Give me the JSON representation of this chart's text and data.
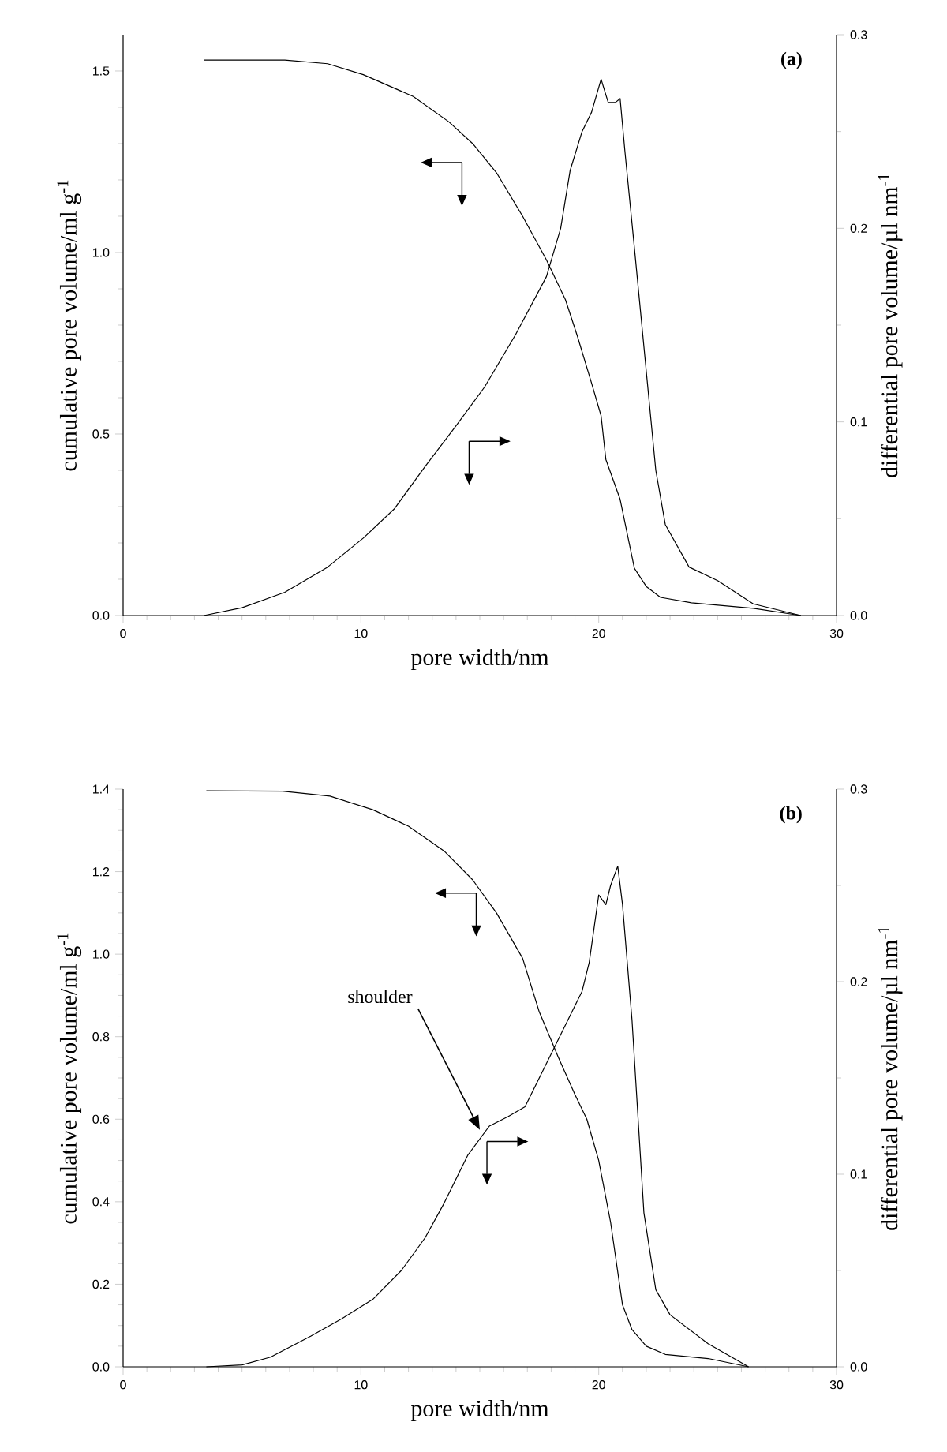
{
  "chart_data": [
    {
      "type": "line",
      "xlabel": "pore width/nm",
      "ylabel": "cumulative pore volume/ml g$^{-1}$",
      "y2label": "differential pore volume/µl nm$^{-1}$",
      "annotations": [
        "(a)"
      ],
      "xlim": [
        0,
        30
      ],
      "xticks": [
        0,
        10,
        20,
        30
      ],
      "ylim": [
        0,
        1.6
      ],
      "yticks": [
        {
          "value": 0,
          "label": "0.0"
        },
        {
          "value": 0.5,
          "label": "0.5"
        },
        {
          "value": 1,
          "label": "1.0"
        },
        {
          "value": 1.5,
          "label": "1.5"
        }
      ],
      "y2lim": [
        0,
        0.3
      ],
      "y2ticks": [
        {
          "value": 0,
          "label": "0.0"
        },
        {
          "value": 0.1,
          "label": "0.1"
        },
        {
          "value": 0.2,
          "label": "0.2"
        },
        {
          "value": 0.3,
          "label": "0.3"
        }
      ],
      "series": [
        {
          "color": "#000000",
          "x": [
            3.4,
            6.8,
            8.6,
            10.1,
            12.2,
            13.7,
            14.7,
            15.7,
            16.8,
            17.8,
            18.6,
            19.1,
            19.7,
            20.1,
            20.3,
            20.9,
            21.5,
            22.0,
            22.6,
            23.9,
            26.5,
            28.5
          ],
          "values": [
            1.53,
            1.53,
            1.52,
            1.49,
            1.43,
            1.36,
            1.3,
            1.22,
            1.1,
            0.98,
            0.87,
            0.77,
            0.64,
            0.55,
            0.43,
            0.32,
            0.13,
            0.08,
            0.05,
            0.035,
            0.02,
            0.0
          ]
        },
        {
          "color": "#000000",
          "axis": "y2",
          "x": [
            3.4,
            5.0,
            6.8,
            8.6,
            10.1,
            11.4,
            12.7,
            14.0,
            15.2,
            16.5,
            17.8,
            18.4,
            18.8,
            19.3,
            19.7,
            20.1,
            20.4,
            20.7,
            20.9,
            21.1,
            21.5,
            22.4,
            22.8,
            23.8,
            25.0,
            26.5,
            28.5
          ],
          "values": [
            0,
            0.004,
            0.012,
            0.025,
            0.04,
            0.055,
            0.077,
            0.098,
            0.118,
            0.145,
            0.175,
            0.2,
            0.23,
            0.25,
            0.26,
            0.277,
            0.265,
            0.265,
            0.267,
            0.24,
            0.19,
            0.075,
            0.047,
            0.025,
            0.018,
            0.006,
            0
          ]
        }
      ]
    },
    {
      "type": "line",
      "xlabel": "pore width/nm",
      "ylabel": "cumulative pore volume/ml g$^{-1}$",
      "y2label": "differential pore volume/µl nm$^{-1}$",
      "annotations": [
        "(b)",
        "shoulder"
      ],
      "xlim": [
        0,
        30
      ],
      "xticks": [
        0,
        10,
        20,
        30
      ],
      "ylim": [
        0,
        1.4
      ],
      "yticks": [
        {
          "value": 0,
          "label": "0.0"
        },
        {
          "value": 0.2,
          "label": "0.2"
        },
        {
          "value": 0.4,
          "label": "0.4"
        },
        {
          "value": 0.6,
          "label": "0.6"
        },
        {
          "value": 0.8,
          "label": "0.8"
        },
        {
          "value": 1,
          "label": "1.0"
        },
        {
          "value": 1.2,
          "label": "1.2"
        },
        {
          "value": 1.4,
          "label": "1.4"
        }
      ],
      "y2lim": [
        0,
        0.3
      ],
      "y2ticks": [
        {
          "value": 0,
          "label": "0.0"
        },
        {
          "value": 0.1,
          "label": "0.1"
        },
        {
          "value": 0.2,
          "label": "0.2"
        },
        {
          "value": 0.3,
          "label": "0.3"
        }
      ],
      "series": [
        {
          "color": "#000000",
          "x": [
            3.5,
            6.7,
            8.7,
            10.5,
            12.0,
            13.5,
            14.7,
            15.7,
            16.8,
            17.5,
            18.3,
            19.0,
            19.5,
            20.0,
            20.5,
            21.0,
            21.4,
            22.0,
            22.8,
            24.6,
            26.3
          ],
          "values": [
            1.396,
            1.395,
            1.383,
            1.35,
            1.31,
            1.25,
            1.18,
            1.1,
            0.99,
            0.86,
            0.75,
            0.66,
            0.6,
            0.5,
            0.35,
            0.15,
            0.09,
            0.05,
            0.03,
            0.02,
            0.0
          ]
        },
        {
          "color": "#000000",
          "axis": "y2",
          "x": [
            3.5,
            5.0,
            6.2,
            7.9,
            9.2,
            10.5,
            11.7,
            12.7,
            13.5,
            14.5,
            15.4,
            16.2,
            16.9,
            17.5,
            18.3,
            19.3,
            19.6,
            20.0,
            20.3,
            20.5,
            20.8,
            21.0,
            21.4,
            21.9,
            22.4,
            23.0,
            24.6,
            26.3
          ],
          "values": [
            0,
            0.001,
            0.005,
            0.016,
            0.025,
            0.035,
            0.05,
            0.067,
            0.085,
            0.11,
            0.125,
            0.13,
            0.135,
            0.15,
            0.17,
            0.195,
            0.21,
            0.245,
            0.24,
            0.25,
            0.26,
            0.24,
            0.18,
            0.08,
            0.04,
            0.027,
            0.012,
            0
          ]
        }
      ]
    }
  ]
}
